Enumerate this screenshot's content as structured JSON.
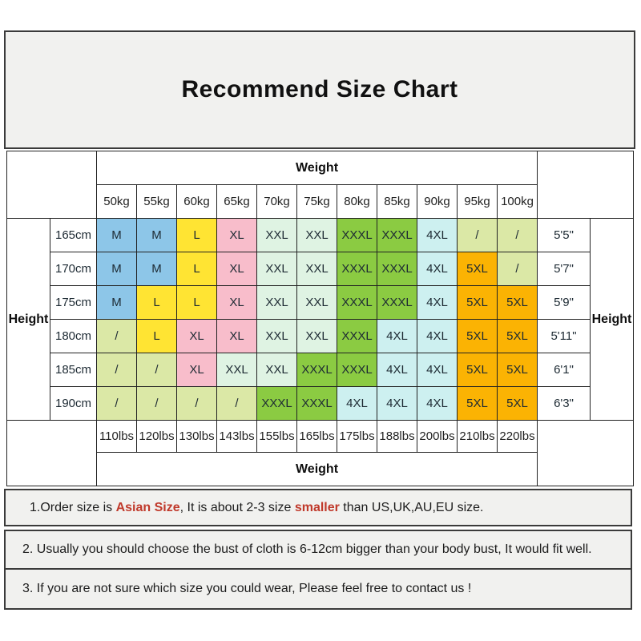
{
  "page": {
    "title": "Recommend Size Chart"
  },
  "chart_data": {
    "type": "table",
    "title": "Recommend Size Chart",
    "weight_header": "Weight",
    "weight_footer": "Weight",
    "height_label_left": "Height",
    "height_label_right": "Height",
    "weight_kg": [
      "50kg",
      "55kg",
      "60kg",
      "65kg",
      "70kg",
      "75kg",
      "80kg",
      "85kg",
      "90kg",
      "95kg",
      "100kg"
    ],
    "weight_lbs": [
      "110lbs",
      "120lbs",
      "130lbs",
      "143lbs",
      "155lbs",
      "165lbs",
      "175lbs",
      "188lbs",
      "200lbs",
      "210lbs",
      "220lbs"
    ],
    "rows": [
      {
        "height_cm": "165cm",
        "height_ft": "5'5\"",
        "sizes": [
          "M",
          "M",
          "L",
          "XL",
          "XXL",
          "XXL",
          "XXXL",
          "XXXL",
          "4XL",
          "/",
          "/"
        ]
      },
      {
        "height_cm": "170cm",
        "height_ft": "5'7\"",
        "sizes": [
          "M",
          "M",
          "L",
          "XL",
          "XXL",
          "XXL",
          "XXXL",
          "XXXL",
          "4XL",
          "5XL",
          "/"
        ]
      },
      {
        "height_cm": "175cm",
        "height_ft": "5'9\"",
        "sizes": [
          "M",
          "L",
          "L",
          "XL",
          "XXL",
          "XXL",
          "XXXL",
          "XXXL",
          "4XL",
          "5XL",
          "5XL"
        ]
      },
      {
        "height_cm": "180cm",
        "height_ft": "5'11\"",
        "sizes": [
          "/",
          "L",
          "XL",
          "XL",
          "XXL",
          "XXL",
          "XXXL",
          "4XL",
          "4XL",
          "5XL",
          "5XL"
        ]
      },
      {
        "height_cm": "185cm",
        "height_ft": "6'1\"",
        "sizes": [
          "/",
          "/",
          "XL",
          "XXL",
          "XXL",
          "XXXL",
          "XXXL",
          "4XL",
          "4XL",
          "5XL",
          "5XL"
        ]
      },
      {
        "height_cm": "190cm",
        "height_ft": "6'3\"",
        "sizes": [
          "/",
          "/",
          "/",
          "/",
          "XXXL",
          "XXXL",
          "4XL",
          "4XL",
          "4XL",
          "5XL",
          "5XL"
        ]
      }
    ],
    "size_colors": {
      "M": "#8dc6e8",
      "L": "#ffe433",
      "XL": "#f8bdcb",
      "XXL": "#dff3e3",
      "XXXL": "#8bcb42",
      "4XL": "#cdf0f0",
      "5XL": "#fbb303",
      "/": "#dbe8a6"
    }
  },
  "notes": {
    "note1": {
      "prefix": "1.Order size is ",
      "red1": "Asian Size",
      "mid": ", It is about 2-3 size ",
      "red2": "smaller",
      "suffix": " than US,UK,AU,EU size."
    },
    "note2": "2. Usually you should choose the bust of cloth is 6-12cm bigger than your body bust, It would fit well.",
    "note3": "3. If you are not sure which size you could wear, Please feel free to contact us !"
  },
  "colors": {
    "accent_red": "#c0392b",
    "panel_bg": "#f1f1ef",
    "border_dark": "#3b3b3b",
    "grid_line": "#222222"
  }
}
